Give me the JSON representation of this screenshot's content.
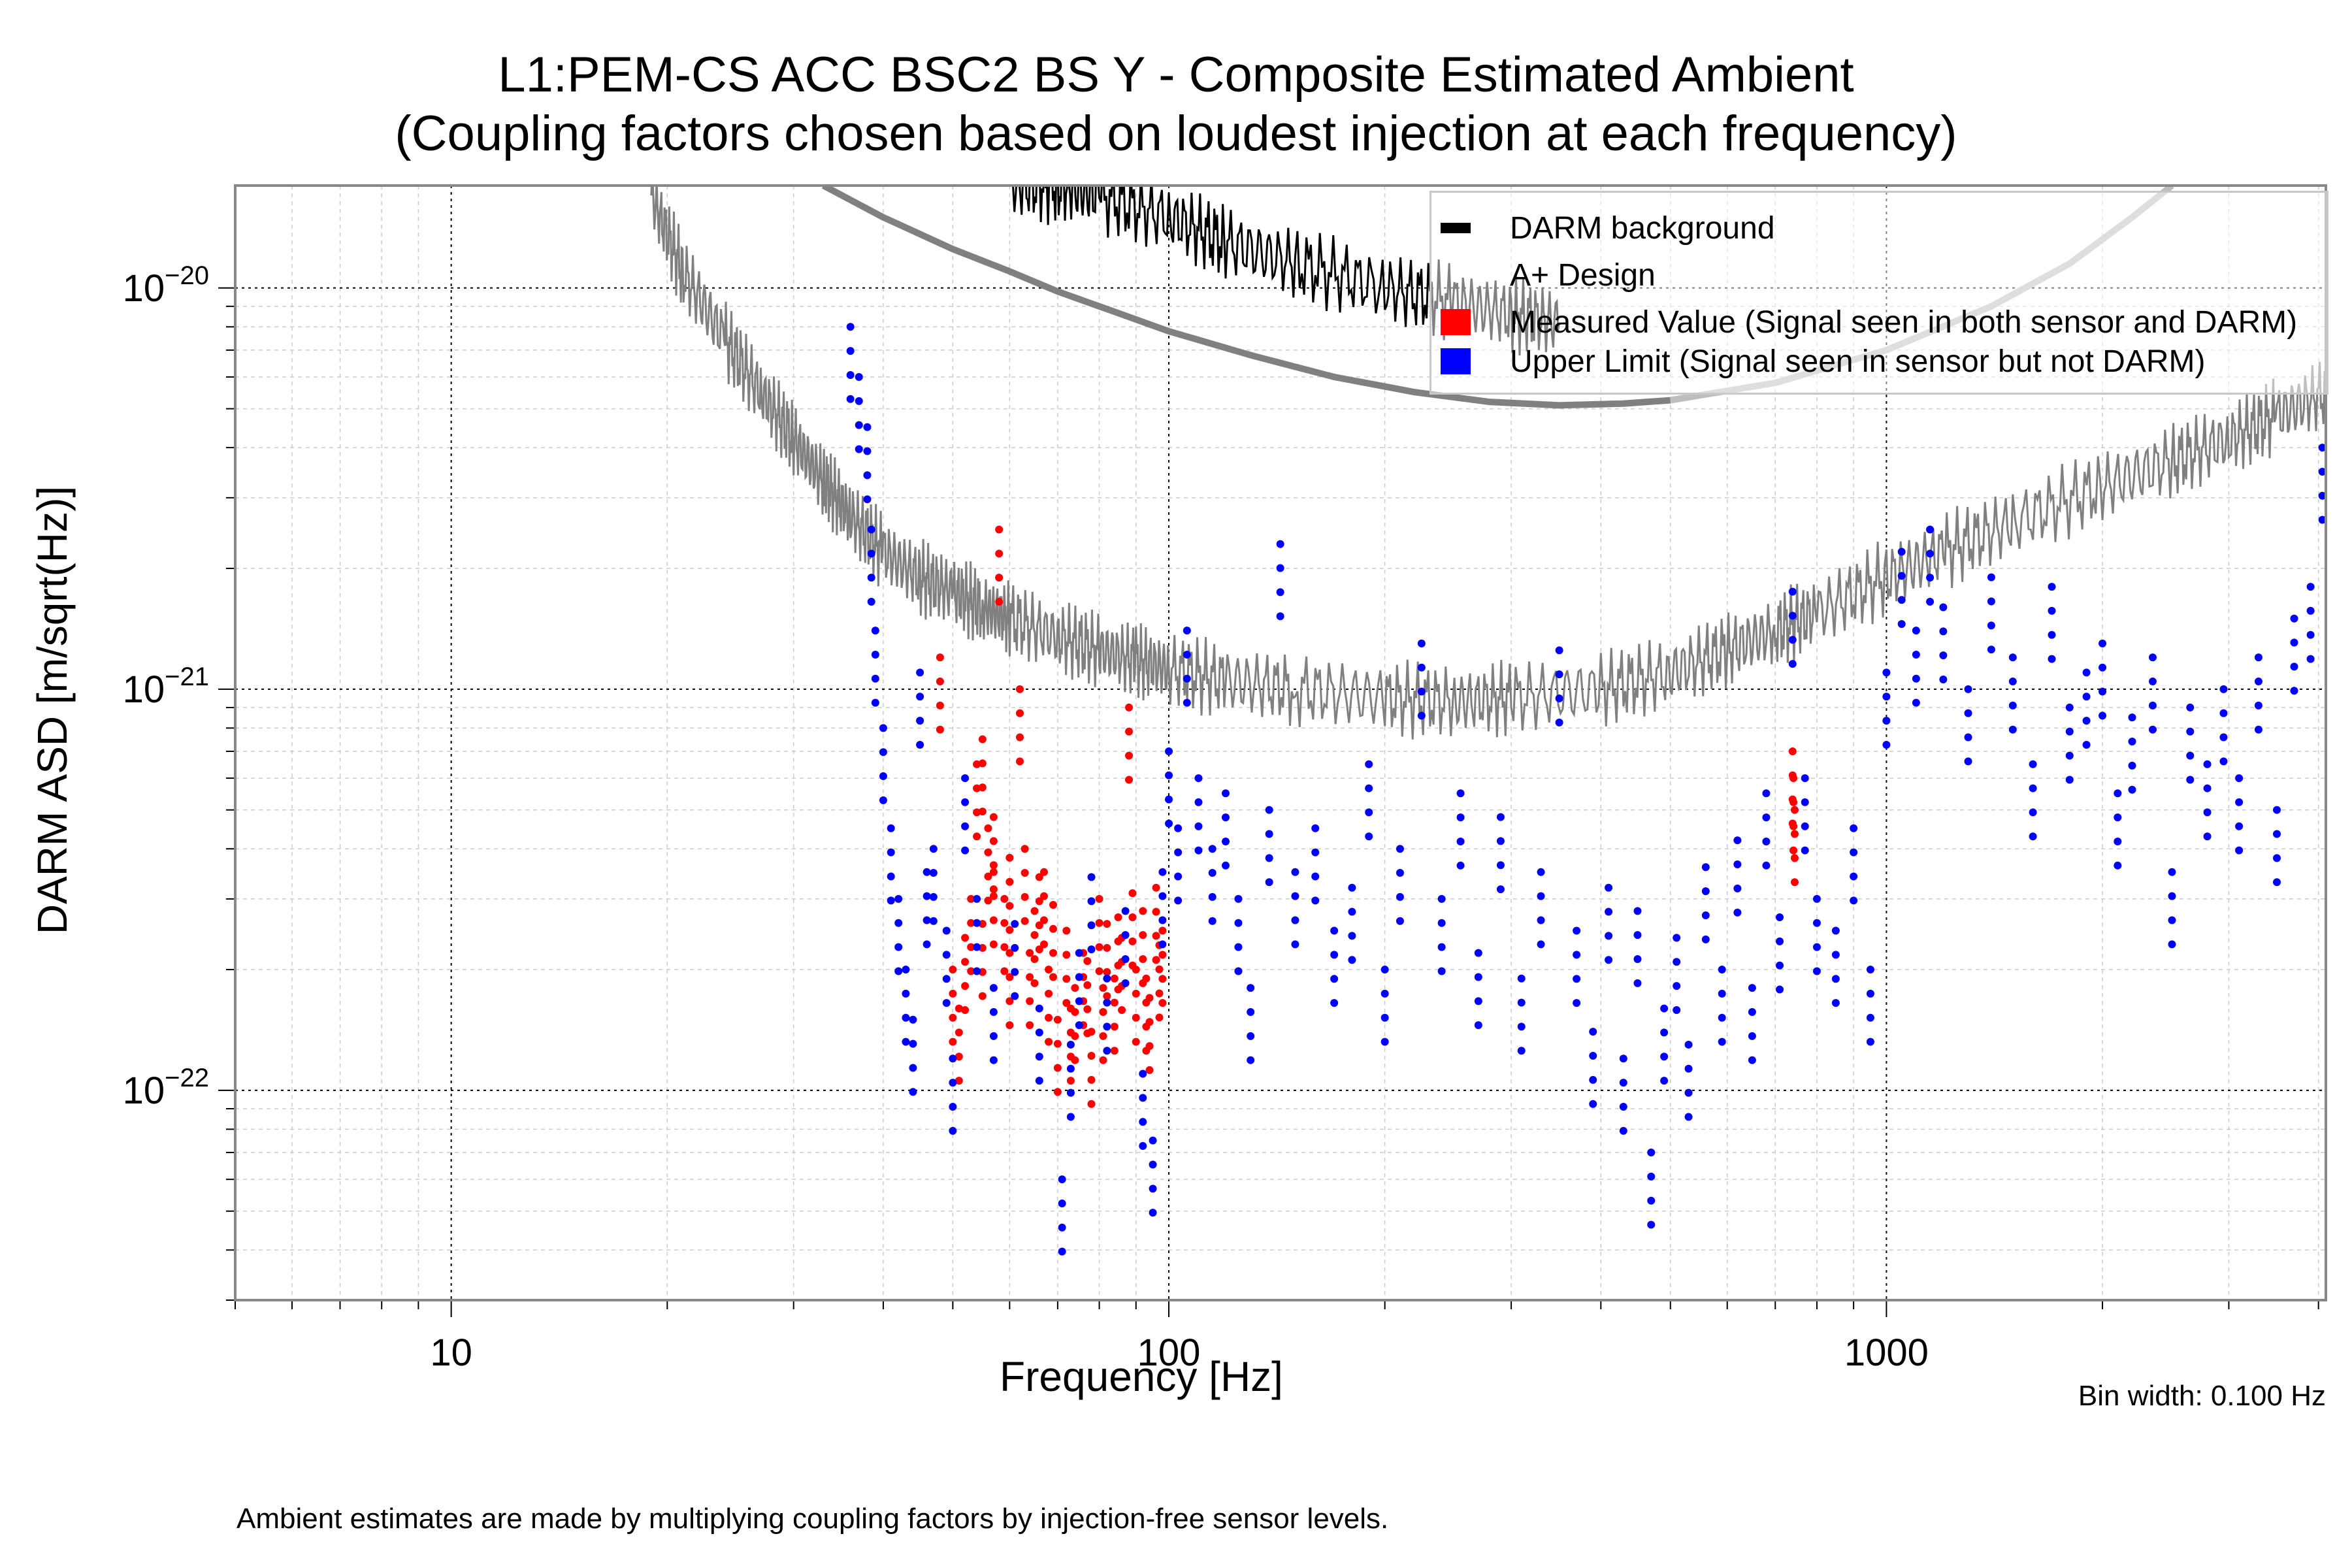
{
  "chart_data": {
    "type": "scatter",
    "title": "L1:PEM-CS ACC BSC2 BS Y - Composite Estimated Ambient",
    "subtitle": "(Coupling factors chosen based on loudest injection at each frequency)",
    "xlabel": "Frequency [Hz]",
    "ylabel": "DARM ASD [m/sqrt(Hz)]",
    "xscale": "log",
    "yscale": "log",
    "xlim": [
      5,
      4096
    ],
    "ylim": [
      3e-23,
      1.8e-20
    ],
    "xticks": [
      {
        "value": 10,
        "label": "10"
      },
      {
        "value": 100,
        "label": "100"
      },
      {
        "value": 1000,
        "label": "1000"
      }
    ],
    "yticks": [
      {
        "value": 1e-22,
        "base": "10",
        "exp": "−22"
      },
      {
        "value": 1e-21,
        "base": "10",
        "exp": "−21"
      },
      {
        "value": 1e-20,
        "base": "10",
        "exp": "−20"
      }
    ],
    "grid": true,
    "legend_position": "top-right",
    "legend": [
      {
        "label": "DARM background",
        "color": "#000000"
      },
      {
        "label": "A+ Design",
        "color": "#808080"
      },
      {
        "label": "Measured Value (Signal seen in both sensor and DARM)",
        "color": "#ff0000"
      },
      {
        "label": "Upper Limit (Signal seen in sensor but not DARM)",
        "color": "#0000ff"
      }
    ],
    "series": [
      {
        "name": "DARM background",
        "kind": "line",
        "color": "#808080",
        "x": [
          19,
          21,
          24,
          27,
          30,
          33,
          36,
          40,
          45,
          50,
          55,
          60,
          70,
          80,
          90,
          100,
          120,
          150,
          200,
          250,
          300,
          400,
          500,
          600,
          700,
          800,
          1000,
          1200,
          1500,
          2000,
          2500,
          3000,
          3500,
          4096
        ],
        "y": [
          1.7e-20,
          1.1e-20,
          7.5e-21,
          5.5e-21,
          4.2e-21,
          3.3e-21,
          2.7e-21,
          2.2e-21,
          1.9e-21,
          1.75e-21,
          1.6e-21,
          1.5e-21,
          1.35e-21,
          1.25e-21,
          1.18e-21,
          1.12e-21,
          1.05e-21,
          1e-21,
          9.5e-22,
          9.3e-22,
          9.5e-22,
          1e-21,
          1.1e-21,
          1.25e-21,
          1.4e-21,
          1.55e-21,
          1.9e-21,
          2.2e-21,
          2.6e-21,
          3.2e-21,
          3.7e-21,
          4.2e-21,
          4.8e-21,
          5.5e-21
        ]
      },
      {
        "name": "DARM background (upper)",
        "kind": "line",
        "color": "#000000",
        "x": [
          60,
          70,
          80,
          100,
          120,
          150,
          200,
          250,
          300,
          350
        ],
        "y": [
          1.8e-20,
          1.8e-20,
          1.7e-20,
          1.5e-20,
          1.3e-20,
          1.15e-20,
          1e-20,
          9.2e-21,
          8.6e-21,
          8.2e-21
        ]
      },
      {
        "name": "A+ Design",
        "kind": "line",
        "color": "#808080",
        "x": [
          33,
          40,
          50,
          60,
          70,
          80,
          100,
          130,
          170,
          220,
          280,
          350,
          430,
          500
        ],
        "y": [
          1.8e-20,
          1.5e-20,
          1.25e-20,
          1.1e-20,
          9.8e-21,
          9e-21,
          7.8e-21,
          6.8e-21,
          6e-21,
          5.5e-21,
          5.2e-21,
          5.1e-21,
          5.15e-21,
          5.25e-21
        ]
      },
      {
        "name": "A+ Design (high)",
        "kind": "line",
        "color": "#bdbdbd",
        "x": [
          500,
          700,
          1000,
          1400,
          1800,
          2200,
          2500
        ],
        "y": [
          5.25e-21,
          5.8e-21,
          7e-21,
          9e-21,
          1.15e-20,
          1.5e-20,
          1.8e-20
        ]
      },
      {
        "name": "Measured Value",
        "kind": "scatter",
        "color": "#ff0000",
        "x": [
          48,
          50,
          51,
          52,
          53,
          54,
          55,
          56,
          57,
          58,
          59,
          60,
          62,
          63,
          65,
          67,
          68,
          70,
          72,
          74,
          76,
          78,
          80,
          82,
          84,
          86,
          88,
          90,
          92,
          94,
          96,
          98,
          55,
          57,
          60,
          64,
          66,
          69,
          73,
          77,
          81,
          85,
          89,
          93,
          97,
          740,
          742,
          745
        ],
        "y": [
          1.2e-21,
          2e-22,
          1.6e-22,
          2.4e-22,
          3e-22,
          6.5e-22,
          7.5e-22,
          4.5e-22,
          3.5e-22,
          2.5e-21,
          3e-22,
          2.2e-22,
          1e-21,
          4e-22,
          2.8e-22,
          3.5e-22,
          2e-22,
          1.5e-22,
          2.5e-22,
          1.8e-22,
          2.2e-22,
          1.4e-22,
          3e-22,
          2.6e-22,
          1.9e-22,
          2.4e-22,
          9e-22,
          2e-22,
          2.8e-22,
          1.7e-22,
          3.2e-22,
          2.5e-22,
          2.6e-22,
          4.8e-22,
          3.8e-22,
          2.2e-22,
          3.4e-22,
          2.9e-22,
          1.6e-22,
          2.1e-22,
          1.8e-22,
          2.7e-22,
          3.1e-22,
          1.9e-22,
          2.3e-22,
          7e-22,
          6e-22,
          5e-22
        ]
      },
      {
        "name": "Upper Limit",
        "kind": "scatter",
        "color": "#0000ff",
        "x": [
          36,
          37,
          38,
          38.5,
          39,
          40,
          41,
          42,
          43,
          44,
          45,
          46,
          47,
          49,
          50,
          52,
          54,
          57,
          61,
          66,
          71,
          73,
          75,
          78,
          82,
          87,
          92,
          95,
          98,
          100,
          103,
          106,
          110,
          115,
          120,
          125,
          130,
          138,
          143,
          150,
          160,
          170,
          180,
          190,
          200,
          210,
          225,
          240,
          255,
          270,
          290,
          310,
          330,
          350,
          370,
          390,
          410,
          430,
          450,
          470,
          490,
          510,
          530,
          560,
          590,
          620,
          650,
          680,
          710,
          740,
          770,
          800,
          850,
          900,
          950,
          1000,
          1050,
          1100,
          1150,
          1200,
          1300,
          1400,
          1500,
          1600,
          1700,
          1800,
          1900,
          2000,
          2100,
          2200,
          2350,
          2500,
          2650,
          2800,
          2950,
          3100,
          3300,
          3500,
          3700,
          3900,
          4050
        ],
        "y": [
          8e-21,
          6e-21,
          4.5e-21,
          2.5e-21,
          1.4e-21,
          8e-22,
          4.5e-22,
          3e-22,
          2e-22,
          1.5e-22,
          1.1e-21,
          3.5e-22,
          4e-22,
          2.5e-22,
          1.2e-22,
          6e-22,
          3e-22,
          1.8e-22,
          2.6e-22,
          1.6e-22,
          6e-23,
          1.3e-22,
          2.2e-22,
          3.4e-22,
          1.9e-22,
          2.8e-22,
          1.1e-22,
          7.5e-23,
          3.5e-22,
          7e-22,
          4.5e-22,
          1.4e-21,
          6e-22,
          4e-22,
          5.5e-22,
          3e-22,
          1.8e-22,
          5e-22,
          2.3e-21,
          3.5e-22,
          4.5e-22,
          2.5e-22,
          3.2e-22,
          6.5e-22,
          2e-22,
          4e-22,
          1.3e-21,
          3e-22,
          5.5e-22,
          2.2e-22,
          4.8e-22,
          1.9e-22,
          3.5e-22,
          1.25e-21,
          2.5e-22,
          1.4e-22,
          3.2e-22,
          1.2e-22,
          2.8e-22,
          7e-23,
          1.6e-22,
          2.4e-22,
          1.3e-22,
          3.6e-22,
          2e-22,
          4.2e-22,
          1.8e-22,
          5.5e-22,
          2.7e-22,
          1.75e-21,
          6e-22,
          3e-22,
          2.5e-22,
          4.5e-22,
          2e-22,
          1.1e-21,
          2.2e-21,
          1.4e-21,
          2.5e-21,
          1.6e-21,
          1e-21,
          1.9e-21,
          1.2e-21,
          6.5e-22,
          1.8e-21,
          9e-22,
          1.1e-21,
          1.3e-21,
          5.5e-22,
          8.5e-22,
          1.2e-21,
          3.5e-22,
          9e-22,
          6.5e-22,
          1e-21,
          6e-22,
          1.2e-21,
          5e-22,
          1.5e-21,
          1.8e-21,
          4e-21
        ]
      }
    ]
  },
  "footer": {
    "bin_width": "Bin width: 0.100 Hz",
    "note": "Ambient estimates are made by multiplying coupling factors by injection-free sensor levels."
  }
}
